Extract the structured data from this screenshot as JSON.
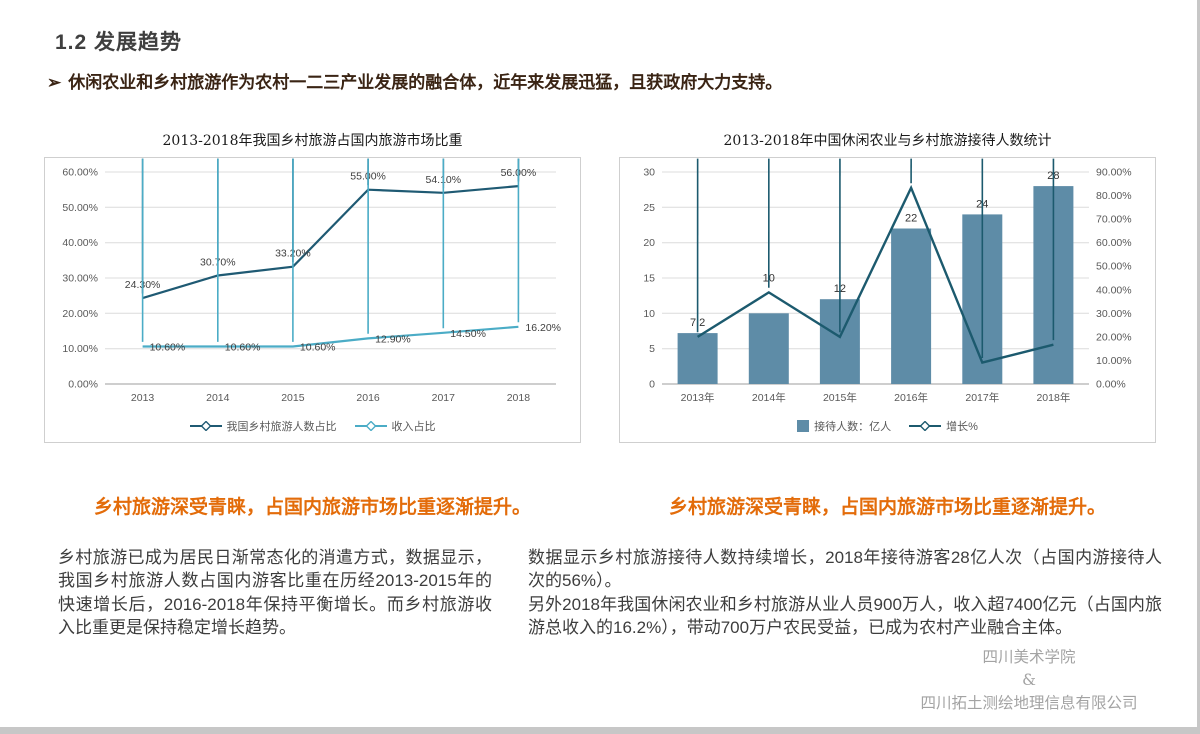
{
  "header": {
    "title": "1.2 发展趋势",
    "bullet_marker": "➢",
    "bullet_text": "休闲农业和乡村旅游作为农村一二三产业发展的融合体，近年来发展迅猛，且获政府大力支持。"
  },
  "chart_data": [
    {
      "type": "line",
      "title": "2013-2018年我国乡村旅游占国内旅游市场比重",
      "categories": [
        "2013",
        "2014",
        "2015",
        "2016",
        "2017",
        "2018"
      ],
      "series": [
        {
          "name": "我国乡村旅游人数占比",
          "values": [
            24.3,
            30.7,
            33.2,
            55.0,
            54.1,
            56.0
          ],
          "color": "#1f5a73"
        },
        {
          "name": "收入占比",
          "values": [
            10.6,
            10.6,
            10.6,
            12.9,
            14.5,
            16.2
          ],
          "color": "#4bacc6"
        }
      ],
      "ylim": [
        0,
        60
      ],
      "ytick_step": 10,
      "tick_format": "percent2",
      "grid": true,
      "legend_position": "bottom"
    },
    {
      "type": "combo",
      "title": "2013-2018年中国休闲农业与乡村旅游接待人数统计",
      "categories": [
        "2013年",
        "2014年",
        "2015年",
        "2016年",
        "2017年",
        "2018年"
      ],
      "bar_series": {
        "name": "接待人数：亿人",
        "values": [
          7.2,
          10,
          12,
          22,
          24,
          28
        ],
        "color": "#5e8ca7",
        "axis": "left"
      },
      "line_series": {
        "name": "增长%",
        "values": [
          20,
          38.9,
          20,
          83.3,
          9.1,
          16.7
        ],
        "color": "#1c5a6e",
        "axis": "right"
      },
      "left_ylim": [
        0,
        30
      ],
      "left_tick_step": 5,
      "right_ylim": [
        0,
        90
      ],
      "right_tick_step": 10,
      "right_tick_format": "percent2",
      "grid": true,
      "legend_position": "bottom"
    }
  ],
  "captions": {
    "left": "乡村旅游深受青睐，占国内旅游市场比重逐渐提升。",
    "right": "乡村旅游深受青睐，占国内旅游市场比重逐渐提升。"
  },
  "paragraphs": {
    "left": "乡村旅游已成为居民日渐常态化的消遣方式，数据显示，我国乡村旅游人数占国内游客比重在历经2013-2015年的快速增长后，2016-2018年保持平衡增长。而乡村旅游收入比重更是保持稳定增长趋势。",
    "right_1": "数据显示乡村旅游接待人数持续增长，2018年接待游客28亿人次（占国内游接待人次的56%）。",
    "right_2": "另外2018年我国休闲农业和乡村旅游从业人员900万人，收入超7400亿元（占国内旅游总收入的16.2%），带动700万户农民受益，已成为农村产业融合主体。"
  },
  "watermark": {
    "line1": "四川美术学院",
    "line2": "&",
    "line3": "四川拓土测绘地理信息有限公司"
  },
  "colors": {
    "accent_orange": "#e36c0a",
    "series_dark": "#1f5a73",
    "series_light": "#4bacc6",
    "bar": "#5e8ca7",
    "grid": "#dcdcdc",
    "tick_text": "#595959"
  }
}
